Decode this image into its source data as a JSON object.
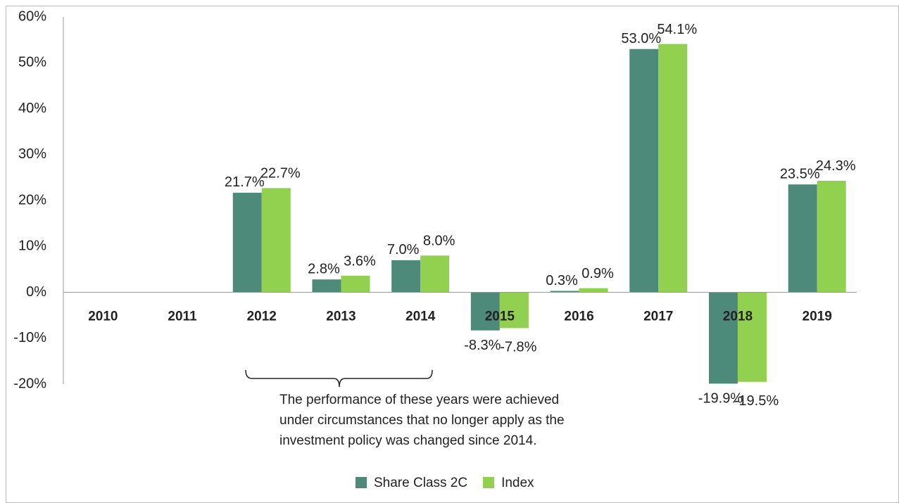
{
  "chart_data": {
    "type": "bar",
    "categories": [
      "2010",
      "2011",
      "2012",
      "2013",
      "2014",
      "2015",
      "2016",
      "2017",
      "2018",
      "2019"
    ],
    "series": [
      {
        "name": "Share Class 2C",
        "color": "#4e8a7a",
        "values": [
          null,
          null,
          21.7,
          2.8,
          7.0,
          -8.3,
          0.3,
          53.0,
          -19.9,
          23.5
        ],
        "value_labels": [
          null,
          null,
          "21.7%",
          "2.8%",
          "7.0%",
          "-8.3%",
          "0.3%",
          "53.0%",
          "-19.9%",
          "23.5%"
        ]
      },
      {
        "name": "Index",
        "color": "#92d050",
        "values": [
          null,
          null,
          22.7,
          3.6,
          8.0,
          -7.8,
          0.9,
          54.1,
          -19.5,
          24.3
        ],
        "value_labels": [
          null,
          null,
          "22.7%",
          "3.6%",
          "8.0%",
          "-7.8%",
          "0.9%",
          "54.1%",
          "-19.5%",
          "24.3%"
        ]
      }
    ],
    "ylim": [
      -20,
      60
    ],
    "yticks": [
      {
        "value": -20,
        "label": "-20%"
      },
      {
        "value": -10,
        "label": "-10%"
      },
      {
        "value": 0,
        "label": "0%"
      },
      {
        "value": 10,
        "label": "10%"
      },
      {
        "value": 20,
        "label": "20%"
      },
      {
        "value": 30,
        "label": "30%"
      },
      {
        "value": 40,
        "label": "40%"
      },
      {
        "value": 50,
        "label": "50%"
      },
      {
        "value": 60,
        "label": "60%"
      }
    ],
    "grid": false,
    "annotation": [
      "The performance of these years were achieved",
      "under circumstances that no longer apply as the",
      "investment policy was changed since 2014."
    ]
  }
}
